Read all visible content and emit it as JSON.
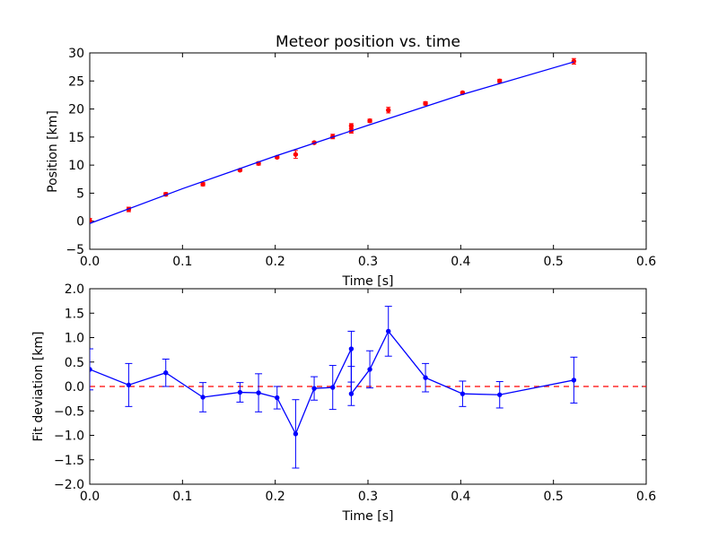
{
  "chart_data": [
    {
      "type": "line",
      "title": "Meteor position vs. time",
      "xlabel": "Time [s]",
      "ylabel": "Position [km]",
      "xlim": [
        0.0,
        0.6
      ],
      "ylim": [
        -5,
        30
      ],
      "xticks": [
        "0.0",
        "0.1",
        "0.2",
        "0.3",
        "0.4",
        "0.5",
        "0.6"
      ],
      "yticks": [
        "−5",
        "0",
        "5",
        "10",
        "15",
        "20",
        "25",
        "30"
      ],
      "series": [
        {
          "kind": "errorbar-points",
          "color": "#ff0000",
          "x": [
            0.0,
            0.042,
            0.082,
            0.122,
            0.162,
            0.182,
            0.202,
            0.222,
            0.242,
            0.262,
            0.282,
            0.282,
            0.302,
            0.322,
            0.362,
            0.402,
            0.442,
            0.522
          ],
          "y": [
            0.1,
            2.1,
            4.8,
            6.6,
            9.1,
            10.3,
            11.4,
            11.9,
            14.0,
            15.1,
            17.0,
            16.1,
            17.9,
            19.8,
            21.0,
            22.9,
            25.0,
            28.5
          ],
          "yerr": [
            0.4,
            0.4,
            0.3,
            0.3,
            0.2,
            0.3,
            0.2,
            0.7,
            0.2,
            0.4,
            0.4,
            0.4,
            0.3,
            0.5,
            0.3,
            0.2,
            0.3,
            0.5
          ]
        },
        {
          "kind": "fit-line",
          "color": "#0000ff",
          "x": [
            0.0,
            0.1,
            0.2,
            0.3,
            0.4,
            0.522
          ],
          "y": [
            -0.4,
            5.8,
            11.6,
            17.1,
            22.5,
            28.4
          ]
        }
      ]
    },
    {
      "type": "line",
      "title": "",
      "xlabel": "Time [s]",
      "ylabel": "Fit deviation [km]",
      "xlim": [
        0.0,
        0.6
      ],
      "ylim": [
        -2.0,
        2.0
      ],
      "xticks": [
        "0.0",
        "0.1",
        "0.2",
        "0.3",
        "0.4",
        "0.5",
        "0.6"
      ],
      "yticks": [
        "−2.0",
        "−1.5",
        "−1.0",
        "−0.5",
        "0.0",
        "0.5",
        "1.0",
        "1.5",
        "2.0"
      ],
      "reference_line": {
        "y": 0.0,
        "color": "#ff0000",
        "style": "dashed"
      },
      "series": [
        {
          "kind": "errorbar-line",
          "color": "#0000ff",
          "x": [
            0.0,
            0.042,
            0.082,
            0.122,
            0.162,
            0.182,
            0.202,
            0.222,
            0.242,
            0.262,
            0.282,
            0.282,
            0.302,
            0.322,
            0.362,
            0.402,
            0.442,
            0.522
          ],
          "y": [
            0.35,
            0.03,
            0.28,
            -0.22,
            -0.12,
            -0.13,
            -0.23,
            -0.97,
            -0.04,
            -0.02,
            0.77,
            -0.15,
            0.35,
            1.13,
            0.18,
            -0.15,
            -0.17,
            0.13
          ],
          "yerr": [
            0.42,
            0.44,
            0.28,
            0.3,
            0.2,
            0.39,
            0.23,
            0.7,
            0.24,
            0.45,
            0.36,
            0.24,
            0.38,
            0.51,
            0.29,
            0.26,
            0.27,
            0.47
          ]
        }
      ]
    }
  ]
}
